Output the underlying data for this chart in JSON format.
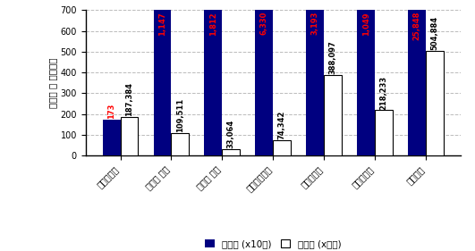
{
  "categories": [
    "디스플레이",
    "반도체 제조",
    "반도체 장비",
    "금속표면처리",
    "전통세라믹",
    "파인세라믹",
    "특수가공"
  ],
  "business_vals": [
    173,
    1147,
    1812,
    6330,
    3193,
    1049,
    25848
  ],
  "workers_vals": [
    187.384,
    109.511,
    33.064,
    74.342,
    388.097,
    218.233,
    504.884
  ],
  "business_labels": [
    "173",
    "1,147",
    "1,812",
    "6,330",
    "3,193",
    "1,049",
    "25,848"
  ],
  "workers_labels": [
    "187,384",
    "109,511",
    "33,064",
    "74,342",
    "388,097",
    "218,233",
    "504,884"
  ],
  "business_color": "#000080",
  "workers_color": "#ffffff",
  "workers_edge_color": "#000000",
  "annotation_color_business": "#ff0000",
  "annotation_color_workers": "#000000",
  "ylabel": "사업체 및 종사자수",
  "ylim": [
    0,
    700
  ],
  "yticks": [
    0,
    100,
    200,
    300,
    400,
    500,
    600,
    700
  ],
  "legend_business": "사업체 (x10개)",
  "legend_workers": "종사자 (x천명)",
  "background_color": "#ffffff",
  "grid_color": "#bbbbbb",
  "bar_width": 0.35,
  "figwidth": 5.31,
  "figheight": 2.81,
  "dpi": 100,
  "tick_fontsize": 7,
  "label_fontsize": 7.5,
  "annot_fontsize": 6,
  "legend_fontsize": 7.5
}
